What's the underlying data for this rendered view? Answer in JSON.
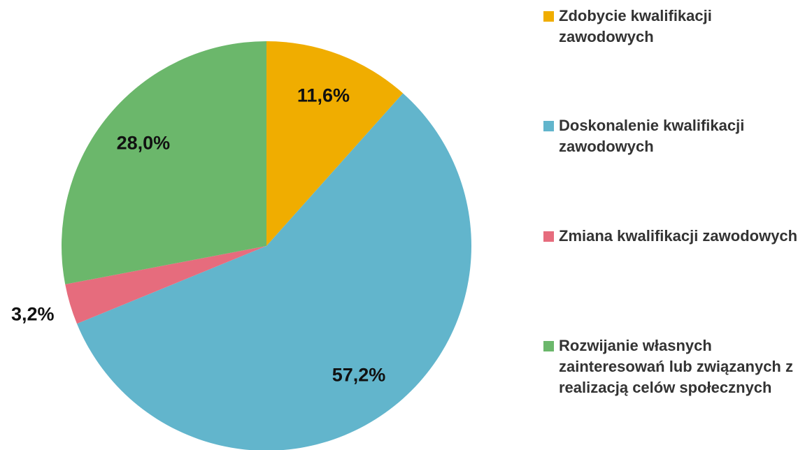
{
  "chart_data": {
    "type": "pie",
    "categories": [
      "Zdobycie kwalifikacji zawodowych",
      "Doskonalenie kwalifikacji zawodowych",
      "Zmiana kwalifikacji zawodowych",
      "Rozwijanie własnych zainteresowań lub związanych z realizacją celów społecznych"
    ],
    "values": [
      11.6,
      57.2,
      3.2,
      28.0
    ],
    "value_labels": [
      "11,6%",
      "57,2%",
      "3,2%",
      "28,0%"
    ],
    "colors": [
      "#f0ad00",
      "#62b5cc",
      "#e66c7d",
      "#6bb76b"
    ],
    "legend": "right"
  }
}
